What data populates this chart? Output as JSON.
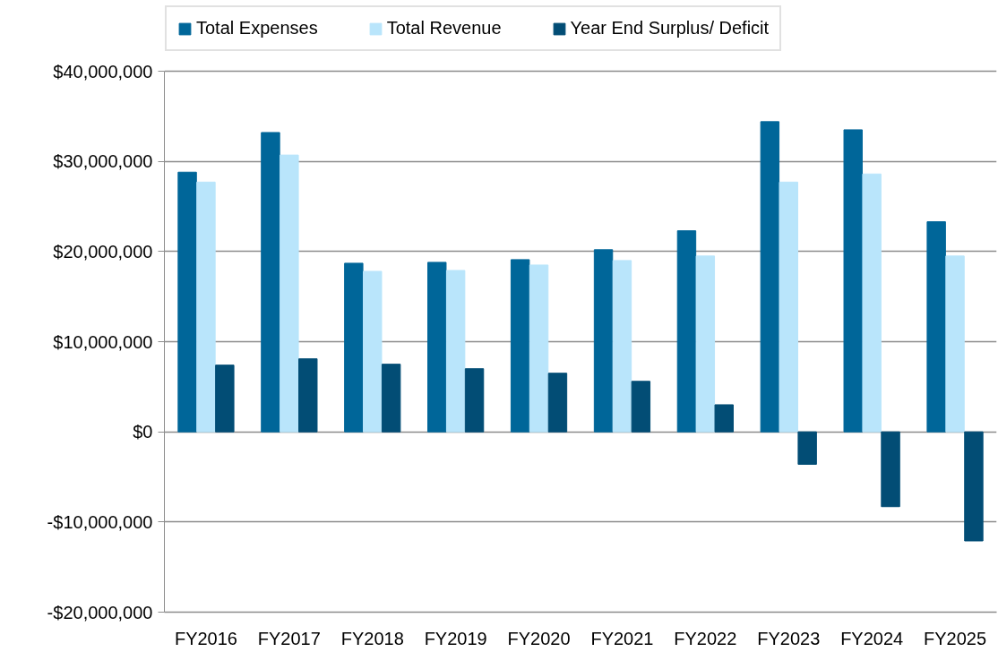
{
  "chart_data": {
    "type": "bar",
    "categories": [
      "FY2016",
      "FY2017",
      "FY2018",
      "FY2019",
      "FY2020",
      "FY2021",
      "FY2022",
      "FY2023",
      "FY2024",
      "FY2025"
    ],
    "series": [
      {
        "name": "Total Expenses",
        "color": "#006699",
        "values": [
          28800000,
          33200000,
          18700000,
          18800000,
          19100000,
          20200000,
          22300000,
          34400000,
          33500000,
          23300000
        ]
      },
      {
        "name": "Total Revenue",
        "color": "#b9e5fb",
        "values": [
          27700000,
          30700000,
          17800000,
          17900000,
          18500000,
          19000000,
          19500000,
          27700000,
          28600000,
          19500000
        ]
      },
      {
        "name": "Year End Surplus/ Deficit",
        "color": "#024d75",
        "values": [
          7400000,
          8100000,
          7500000,
          7000000,
          6500000,
          5600000,
          3000000,
          -3600000,
          -8300000,
          -12100000
        ]
      }
    ],
    "ylim": [
      -20000000,
      40000000
    ],
    "yticks": [
      {
        "value": -20000000,
        "label": "-$20,000,000"
      },
      {
        "value": -10000000,
        "label": "-$10,000,000"
      },
      {
        "value": 0,
        "label": "$0"
      },
      {
        "value": 10000000,
        "label": "$10,000,000"
      },
      {
        "value": 20000000,
        "label": "$20,000,000"
      },
      {
        "value": 30000000,
        "label": "$30,000,000"
      },
      {
        "value": 40000000,
        "label": "$40,000,000"
      }
    ],
    "grid": "y",
    "legend": "top"
  }
}
